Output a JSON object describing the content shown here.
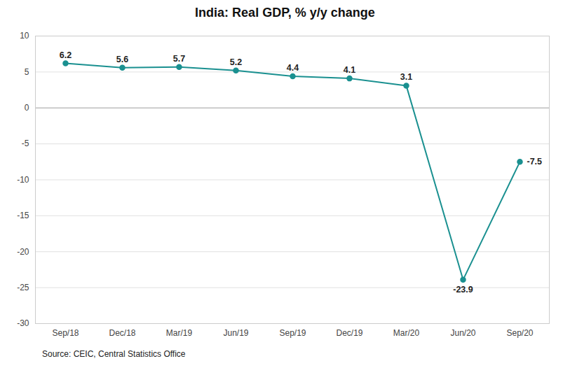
{
  "chart_data": {
    "type": "line",
    "title": "India: Real GDP, % y/y change",
    "source": "Source: CEIC, Central Statistics Office",
    "categories": [
      "Sep/18",
      "Dec/18",
      "Mar/19",
      "Jun/19",
      "Sep/19",
      "Dec/19",
      "Mar/20",
      "Jun/20",
      "Sep/20"
    ],
    "values": [
      6.2,
      5.6,
      5.7,
      5.2,
      4.4,
      4.1,
      3.1,
      -23.9,
      -7.5
    ],
    "color": "#1a9090",
    "marker": "circle",
    "ylim": [
      -30,
      10
    ],
    "yticks": [
      -30,
      -25,
      -20,
      -15,
      -10,
      -5,
      0,
      5,
      10
    ],
    "grid": true,
    "data_labels": true
  }
}
